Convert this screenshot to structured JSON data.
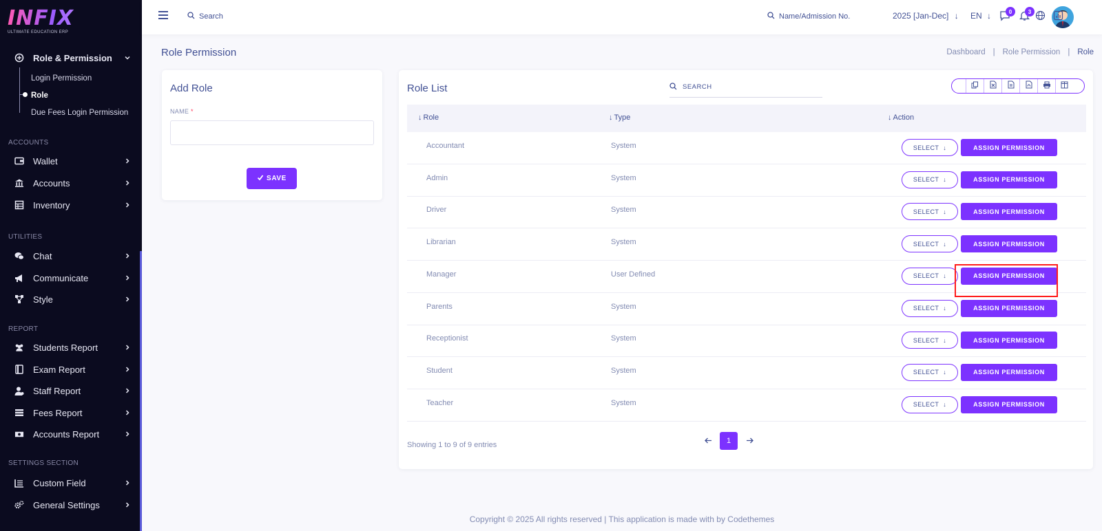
{
  "brand": {
    "logo": "INFIX",
    "tagline": "ULTIMATE EDUCATION ERP",
    "accent": "#7c32ff"
  },
  "sidebar": {
    "group_header": "Role & Permission",
    "sub_items": [
      "Login Permission",
      "Role",
      "Due Fees Login Permission"
    ],
    "sections": {
      "accounts": "ACCOUNTS",
      "utilities": "UTILITIES",
      "report": "REPORT",
      "settings": "SETTINGS SECTION"
    },
    "items": {
      "wallet": "Wallet",
      "accounts": "Accounts",
      "inventory": "Inventory",
      "chat": "Chat",
      "communicate": "Communicate",
      "style": "Style",
      "students_report": "Students Report",
      "exam_report": "Exam Report",
      "staff_report": "Staff Report",
      "fees_report": "Fees Report",
      "accounts_report": "Accounts Report",
      "custom_field": "Custom Field",
      "general_settings": "General Settings"
    }
  },
  "topbar": {
    "search_label": "Search",
    "admission_search_label": "Name/Admission No.",
    "year": "2025 [Jan-Dec]",
    "language": "EN",
    "chat_badge": "0",
    "notification_badge": "3"
  },
  "page": {
    "title": "Role Permission",
    "breadcrumb": [
      "Dashboard",
      "|",
      "Role Permission",
      "|",
      "Role"
    ]
  },
  "add_role": {
    "title": "Add Role",
    "name_label": "NAME",
    "required_mark": "*",
    "save_label": "SAVE"
  },
  "role_list": {
    "title": "Role List",
    "search_placeholder": "SEARCH",
    "columns": [
      "Role",
      "Type",
      "Action"
    ],
    "select_label": "SELECT",
    "assign_label": "ASSIGN PERMISSION",
    "rows": [
      {
        "role": "Accountant",
        "type": "System"
      },
      {
        "role": "Admin",
        "type": "System"
      },
      {
        "role": "Driver",
        "type": "System"
      },
      {
        "role": "Librarian",
        "type": "System"
      },
      {
        "role": "Manager",
        "type": "User Defined"
      },
      {
        "role": "Parents",
        "type": "System"
      },
      {
        "role": "Receptionist",
        "type": "System"
      },
      {
        "role": "Student",
        "type": "System"
      },
      {
        "role": "Teacher",
        "type": "System"
      }
    ],
    "showing": "Showing 1 to 9 of 9 entries",
    "current_page": "1"
  },
  "footer": "Copyright © 2025 All rights reserved | This application is made with by Codethemes"
}
